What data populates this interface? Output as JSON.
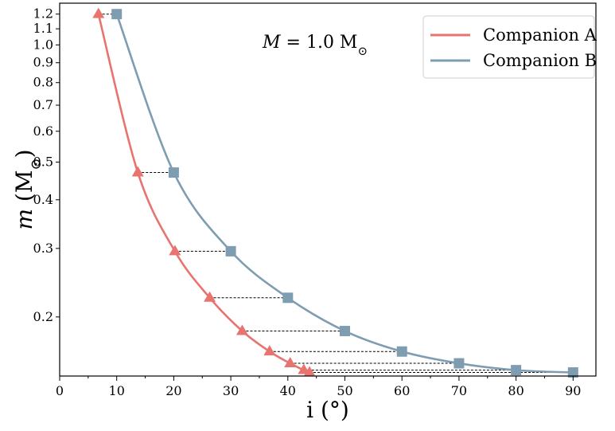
{
  "chart_data": {
    "type": "line",
    "annotation": {
      "symbol": "M",
      "equals": " = 1.0 M",
      "sun_symbol": "⊙"
    },
    "xlabel": "i (°)",
    "ylabel": {
      "symbol": "m",
      "rest": " (M",
      "sun_symbol": "⊙",
      "close": ")"
    },
    "xlim": [
      0,
      94
    ],
    "ylim": [
      0.141,
      1.28
    ],
    "yscale": "log",
    "xticks": [
      0,
      10,
      20,
      30,
      40,
      50,
      60,
      70,
      80,
      90
    ],
    "xtick_labels": [
      "0",
      "10",
      "20",
      "30",
      "40",
      "50",
      "60",
      "70",
      "80",
      "90"
    ],
    "yticks": [
      0.2,
      0.3,
      0.4,
      0.5,
      0.6,
      0.7,
      0.8,
      0.9,
      1.0,
      1.1,
      1.2
    ],
    "ytick_labels": [
      "0.2",
      "0.3",
      "0.4",
      "0.5",
      "0.6",
      "0.7",
      "0.8",
      "0.9",
      "1.0",
      "1.1",
      "1.2"
    ],
    "legend_position": "top-right",
    "series": [
      {
        "name": "Companion A",
        "color": "#e8736f",
        "marker": "triangle",
        "x": [
          6.8,
          13.7,
          20.2,
          26.3,
          32.0,
          36.8,
          40.4,
          42.8,
          43.8
        ],
        "y": [
          1.2,
          0.47,
          0.295,
          0.224,
          0.184,
          0.163,
          0.152,
          0.146,
          0.144
        ]
      },
      {
        "name": "Companion B",
        "color": "#7f9db1",
        "marker": "square",
        "x": [
          10,
          20,
          30,
          40,
          50,
          60,
          70,
          80,
          90
        ],
        "y": [
          1.2,
          0.47,
          0.295,
          0.224,
          0.184,
          0.163,
          0.152,
          0.146,
          0.144
        ]
      }
    ]
  }
}
